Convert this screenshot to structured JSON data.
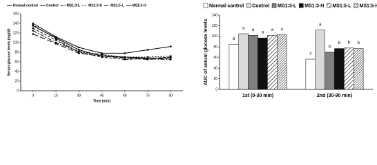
{
  "chart_data": [
    {
      "type": "line",
      "x_label": "Time (min)",
      "y_label": "Serum glucose levels (mg/dl)",
      "x": [
        0,
        15,
        30,
        45,
        60,
        75,
        90
      ],
      "xlim": [
        -8,
        98
      ],
      "xticks": [
        0,
        15,
        30,
        45,
        60,
        75,
        90
      ],
      "ylim": [
        0,
        160
      ],
      "yticks": [
        0,
        20,
        40,
        60,
        80,
        100,
        120,
        140,
        160
      ],
      "series": [
        {
          "name": "Normal-control",
          "color": "#000000",
          "dash": "",
          "values": [
            135,
            110,
            85,
            72,
            70,
            68,
            68
          ]
        },
        {
          "name": "Control",
          "color": "#000000",
          "dash": "",
          "values": [
            140,
            112,
            90,
            78,
            78,
            85,
            92
          ]
        },
        {
          "name": "MS1:3-L",
          "color": "#000000",
          "dash": "4 2",
          "values": [
            130,
            105,
            80,
            70,
            65,
            67,
            70
          ]
        },
        {
          "name": "MS1:3-H",
          "color": "#000000",
          "dash": "2 2",
          "values": [
            137,
            108,
            80,
            75,
            70,
            70,
            72
          ]
        },
        {
          "name": "MS1:5-L",
          "color": "#000000",
          "dash": "6 2 2 2",
          "values": [
            125,
            100,
            82,
            75,
            68,
            66,
            65
          ]
        },
        {
          "name": "MS1:5-H",
          "color": "#000000",
          "dash": "8 3",
          "values": [
            118,
            98,
            78,
            72,
            68,
            65,
            68
          ]
        }
      ]
    },
    {
      "type": "bar",
      "y_label": "AUC of serum glucose levels",
      "categories": [
        "1st (0-30 min)",
        "2nd (30-90 min)"
      ],
      "ylim": [
        0,
        140
      ],
      "yticks": [
        0,
        20,
        40,
        60,
        80,
        100,
        120,
        140
      ],
      "series": [
        {
          "name": "Normal-control",
          "color": "#ffffff",
          "hatch": "none",
          "values": [
            85,
            57
          ],
          "letters": [
            "b",
            "c"
          ]
        },
        {
          "name": "Control",
          "color": "#d9d9d9",
          "hatch": "none",
          "values": [
            105,
            112
          ],
          "letters": [
            "a",
            "a"
          ]
        },
        {
          "name": "MS1:3-L",
          "color": "#808080",
          "hatch": "none",
          "values": [
            102,
            70
          ],
          "letters": [
            "a",
            "b"
          ]
        },
        {
          "name": "MS1:3-H",
          "color": "#111111",
          "hatch": "none",
          "values": [
            97,
            77
          ],
          "letters": [
            "a",
            "b"
          ]
        },
        {
          "name": "MS1:5-L",
          "color": "#ffffff",
          "hatch": "wide",
          "values": [
            102,
            78
          ],
          "letters": [
            "a",
            "b"
          ]
        },
        {
          "name": "MS1:5-H",
          "color": "#ffffff",
          "hatch": "dense",
          "values": [
            103,
            77
          ],
          "letters": [
            "a",
            "b"
          ]
        }
      ]
    }
  ]
}
